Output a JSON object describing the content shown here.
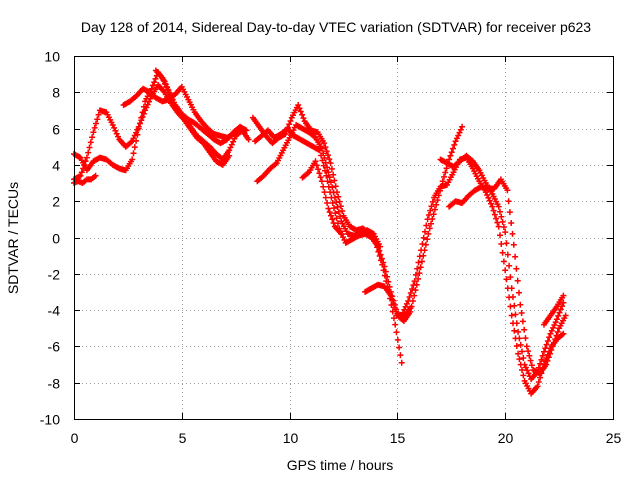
{
  "chart_data": {
    "type": "scatter",
    "title": "Day 128 of 2014, Sidereal Day-to-day VTEC variation (SDTVAR) for receiver p623",
    "xlabel": "GPS time / hours",
    "ylabel": "SDTVAR / TECUs",
    "xlim": [
      0,
      25
    ],
    "ylim": [
      -10,
      10
    ],
    "xticks": [
      "0",
      "5",
      "10",
      "15",
      "20",
      "25"
    ],
    "yticks": [
      "-10",
      "-8",
      "-6",
      "-4",
      "-2",
      "0",
      "2",
      "4",
      "6",
      "8",
      "10"
    ],
    "grid": true,
    "marker": "plus",
    "color": "#ff0000",
    "series": [
      {
        "x": [
          0.0,
          0.3,
          0.6,
          0.9,
          1.2,
          1.5,
          1.8,
          2.1,
          2.4,
          2.7,
          3.0,
          3.3,
          3.6,
          3.9,
          4.2,
          4.5,
          4.8,
          5.1,
          5.4,
          5.7,
          6.0,
          6.3,
          6.6,
          6.9,
          7.2,
          7.5,
          7.8,
          8.1
        ],
        "y": [
          4.6,
          4.4,
          3.7,
          4.2,
          4.4,
          4.3,
          4.0,
          3.8,
          3.7,
          4.3,
          6.0,
          7.5,
          8.2,
          9.1,
          8.6,
          7.8,
          6.9,
          6.6,
          6.1,
          5.6,
          5.3,
          5.0,
          4.6,
          4.3,
          4.8,
          5.6,
          5.9,
          5.4
        ]
      },
      {
        "x": [
          0.0,
          0.3,
          0.6,
          0.9,
          1.2,
          1.5,
          1.8,
          2.1,
          2.4,
          2.7,
          3.0,
          3.3,
          3.6,
          3.9,
          4.2,
          4.5,
          4.8,
          5.1,
          5.4,
          5.7,
          6.0,
          6.3,
          6.6,
          6.9,
          7.2
        ],
        "y": [
          3.2,
          3.4,
          4.4,
          5.8,
          7.0,
          6.9,
          6.2,
          5.4,
          5.0,
          5.3,
          6.1,
          7.0,
          7.8,
          8.4,
          8.0,
          7.4,
          6.9,
          6.5,
          6.0,
          5.5,
          5.2,
          4.7,
          4.2,
          4.0,
          4.5
        ]
      },
      {
        "x": [
          0.0,
          0.2,
          0.4,
          0.6,
          0.8,
          1.0
        ],
        "y": [
          3.0,
          3.1,
          3.0,
          3.2,
          3.2,
          3.4
        ]
      },
      {
        "x": [
          2.3,
          2.6,
          2.9,
          3.2,
          3.5,
          3.8,
          4.1,
          4.4,
          4.7,
          5.0,
          5.3,
          5.6,
          5.9,
          6.2,
          6.5,
          6.8,
          7.1,
          7.4,
          7.7
        ],
        "y": [
          7.3,
          7.5,
          7.8,
          8.2,
          8.0,
          7.7,
          7.5,
          7.6,
          7.9,
          8.3,
          7.6,
          6.9,
          6.4,
          6.0,
          5.7,
          5.6,
          5.5,
          5.7,
          5.8
        ]
      },
      {
        "x": [
          3.8,
          4.1,
          4.4,
          4.7,
          5.0,
          5.3,
          5.6,
          5.9,
          6.2,
          6.5,
          6.8,
          7.1,
          7.4,
          7.7,
          8.0
        ],
        "y": [
          9.2,
          8.8,
          8.0,
          7.3,
          6.8,
          6.5,
          6.3,
          6.0,
          5.7,
          5.4,
          5.2,
          5.4,
          5.8,
          6.1,
          5.9
        ]
      },
      {
        "x": [
          8.4,
          8.7,
          9.0,
          9.3,
          9.6,
          9.9,
          10.2,
          10.5,
          10.8,
          11.1,
          11.4,
          11.7,
          12.0,
          12.3,
          12.6,
          12.9,
          13.2,
          13.5,
          13.8,
          14.1,
          14.4,
          14.7,
          15.0,
          15.3,
          15.6
        ],
        "y": [
          5.3,
          5.6,
          5.9,
          5.5,
          5.7,
          6.0,
          5.6,
          5.4,
          5.2,
          5.0,
          4.8,
          3.4,
          1.9,
          0.5,
          -0.3,
          -0.1,
          0.1,
          0.2,
          0.0,
          -0.5,
          -1.6,
          -3.0,
          -4.2,
          -4.4,
          -3.9
        ]
      },
      {
        "x": [
          8.5,
          8.8,
          9.1,
          9.4,
          9.7,
          10.0,
          10.3,
          10.6,
          10.9,
          11.2,
          11.5,
          11.8,
          12.1,
          12.4,
          12.7,
          13.0,
          13.3,
          13.6,
          13.9,
          14.2
        ],
        "y": [
          3.1,
          3.4,
          3.8,
          4.1,
          4.8,
          5.5,
          6.2,
          6.0,
          5.8,
          5.5,
          4.9,
          3.6,
          2.2,
          0.9,
          0.2,
          0.1,
          0.3,
          0.4,
          0.2,
          -0.5
        ]
      },
      {
        "x": [
          8.3,
          8.6,
          8.9,
          9.2,
          9.5,
          9.8,
          10.1,
          10.4,
          10.7,
          11.0,
          11.3,
          11.6,
          11.9,
          12.2,
          12.5,
          12.8,
          13.1,
          13.4,
          13.7,
          14.0,
          14.3,
          14.6,
          14.9,
          15.2
        ],
        "y": [
          6.6,
          6.1,
          5.6,
          5.2,
          5.5,
          5.7,
          6.6,
          7.3,
          6.4,
          5.9,
          5.8,
          5.2,
          4.1,
          2.5,
          1.2,
          0.6,
          0.4,
          0.5,
          0.2,
          -0.3,
          -1.5,
          -3.0,
          -4.8,
          -6.9
        ]
      },
      {
        "x": [
          10.6,
          10.9,
          11.2,
          11.5,
          11.8,
          12.1,
          12.4
        ],
        "y": [
          3.3,
          3.6,
          4.2,
          3.1,
          1.6,
          0.6,
          0.2
        ]
      },
      {
        "x": [
          13.5,
          13.8,
          14.1,
          14.4,
          14.7,
          15.0,
          15.3,
          15.6,
          15.9,
          16.2,
          16.5,
          16.8,
          17.1,
          17.4,
          17.7,
          18.0
        ],
        "y": [
          -3.0,
          -2.8,
          -2.6,
          -2.7,
          -3.2,
          -4.3,
          -4.6,
          -4.1,
          -2.6,
          -1.0,
          0.5,
          1.8,
          3.1,
          4.3,
          5.3,
          6.1
        ]
      },
      {
        "x": [
          15.2,
          15.5,
          15.8,
          16.1,
          16.4,
          16.7,
          17.0,
          17.3,
          17.6,
          17.9,
          18.2,
          18.5,
          18.8,
          19.1,
          19.4,
          19.7,
          20.0,
          20.3,
          20.6,
          20.9,
          21.2,
          21.5,
          21.8,
          22.1,
          22.4,
          22.7
        ],
        "y": [
          -4.3,
          -3.5,
          -2.4,
          -0.7,
          1.0,
          2.2,
          2.8,
          2.9,
          3.6,
          4.3,
          4.4,
          3.8,
          3.1,
          2.5,
          1.7,
          0.6,
          -1.8,
          -4.3,
          -6.4,
          -7.9,
          -8.6,
          -8.2,
          -7.0,
          -6.1,
          -5.6,
          -5.3
        ]
      },
      {
        "x": [
          17.0,
          17.3,
          17.6,
          17.9,
          18.2,
          18.5,
          18.8,
          19.1,
          19.4,
          19.7,
          20.0,
          20.3,
          20.6,
          20.9,
          21.2,
          21.5,
          21.8,
          22.1,
          22.4,
          22.7
        ],
        "y": [
          4.3,
          4.1,
          3.9,
          4.2,
          4.5,
          4.2,
          3.7,
          3.0,
          2.4,
          1.7,
          0.3,
          -2.8,
          -5.2,
          -7.0,
          -7.8,
          -7.4,
          -6.3,
          -5.3,
          -4.5,
          -3.6
        ]
      },
      {
        "x": [
          17.4,
          17.7,
          18.0,
          18.3,
          18.6,
          18.9,
          19.2,
          19.5,
          19.8,
          20.1,
          20.4,
          20.7,
          21.0,
          21.3,
          21.6,
          21.9,
          22.2,
          22.5,
          22.8
        ],
        "y": [
          1.7,
          2.0,
          1.9,
          2.3,
          2.6,
          2.8,
          2.7,
          2.7,
          3.2,
          2.6,
          -0.4,
          -3.7,
          -6.0,
          -7.3,
          -7.5,
          -7.0,
          -6.0,
          -5.0,
          -4.3
        ]
      },
      {
        "x": [
          21.8,
          22.1,
          22.4,
          22.7
        ],
        "y": [
          -4.8,
          -4.3,
          -3.8,
          -3.2
        ]
      }
    ]
  }
}
